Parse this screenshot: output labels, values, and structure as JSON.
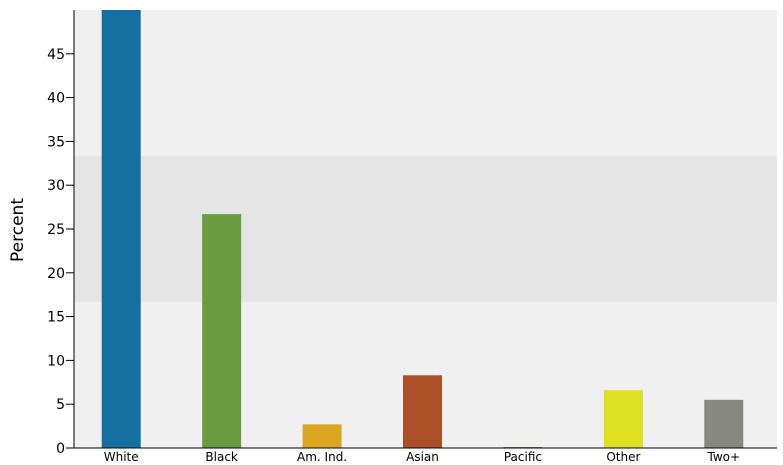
{
  "chart_data": {
    "type": "bar",
    "title": "",
    "xlabel": "",
    "ylabel": "Percent",
    "ylim": [
      0,
      50
    ],
    "yticks": [
      0,
      5,
      10,
      15,
      20,
      25,
      30,
      35,
      40,
      45
    ],
    "categories": [
      "White",
      "Black",
      "Am. Ind.",
      "Asian",
      "Pacific",
      "Other",
      "Two+"
    ],
    "values": [
      50,
      26.7,
      2.7,
      8.3,
      0.1,
      6.6,
      5.5
    ],
    "colors": [
      "#1570a1",
      "#6a9b40",
      "#dca622",
      "#ab5027",
      "#2c8a3e",
      "#dde121",
      "#888882"
    ],
    "highlight_band": [
      16.7,
      33.3
    ],
    "background_color": "#f0f0f0",
    "band_color": "#e5e5e5"
  }
}
